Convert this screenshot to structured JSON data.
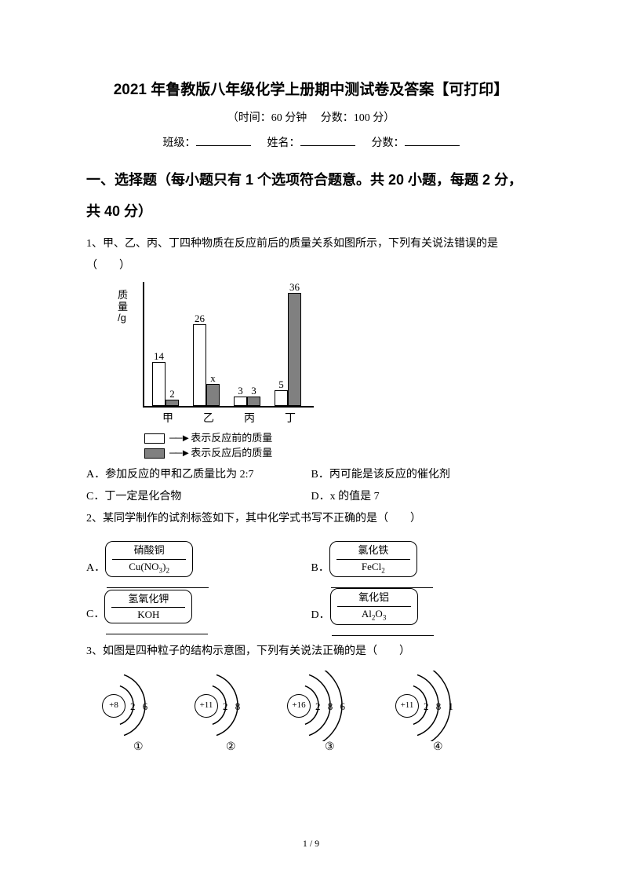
{
  "title": "2021 年鲁教版八年级化学上册期中测试卷及答案【可打印】",
  "meta": "（时间：60 分钟　 分数：100 分）",
  "fill": {
    "class": "班级：",
    "name": "姓名：",
    "score": "分数："
  },
  "section1": "一、选择题（每小题只有 1 个选项符合题意。共 20 小题，每题 2 分，共 40 分）",
  "q1": {
    "stem": "1、甲、乙、丙、丁四种物质在反应前后的质量关系如图所示，下列有关说法错误的是（　　）",
    "chart": {
      "ylabel": [
        "质",
        "量",
        "/g"
      ],
      "categories": [
        "甲",
        "乙",
        "丙",
        "丁"
      ],
      "before": [
        14,
        26,
        3,
        5
      ],
      "after_labels": [
        "2",
        "x",
        "3",
        "36"
      ],
      "before_heights": [
        56,
        104,
        12,
        20
      ],
      "after_heights": [
        8,
        28,
        12,
        144
      ],
      "pair_left": [
        54,
        106,
        158,
        210
      ],
      "bar_color_before": "#ffffff",
      "bar_color_after": "#808080",
      "legend_before": "表示反应前的质量",
      "legend_after": "表示反应后的质量"
    },
    "opts": {
      "A": "A．参加反应的甲和乙质量比为 2:7",
      "B": "B．丙可能是该反应的催化剂",
      "C": "C．丁一定是化合物",
      "D": "D．x 的值是 7"
    }
  },
  "q2": {
    "stem": "2、某同学制作的试剂标签如下，其中化学式书写不正确的是（　　）",
    "A": {
      "letter": "A．",
      "name": "硝酸铜",
      "formula": "Cu(NO<sub>3</sub>)<sub>2</sub>"
    },
    "B": {
      "letter": "B．",
      "name": "氯化铁",
      "formula": "FeCl<sub>2</sub>"
    },
    "C": {
      "letter": "C．",
      "name": "氢氧化钾",
      "formula": "KOH"
    },
    "D": {
      "letter": "D．",
      "name": "氧化铝",
      "formula": "Al<sub>2</sub>O<sub>3</sub>"
    }
  },
  "q3": {
    "stem": "3、如图是四种粒子的结构示意图，下列有关说法正确的是（　　）",
    "atoms": [
      {
        "id": "①",
        "nucleus": "+8",
        "shells": "2 6",
        "rings": 2
      },
      {
        "id": "②",
        "nucleus": "+11",
        "shells": "2 8",
        "rings": 2
      },
      {
        "id": "③",
        "nucleus": "+16",
        "shells": "2 8 6",
        "rings": 3
      },
      {
        "id": "④",
        "nucleus": "+11",
        "shells": "2 8 1",
        "rings": 3
      }
    ]
  },
  "footer": "1 / 9"
}
